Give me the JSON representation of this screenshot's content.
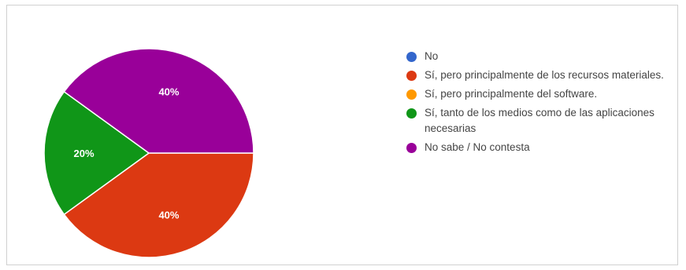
{
  "chart_data": {
    "type": "pie",
    "categories": [
      "No",
      "Sí, pero principalmente de los recursos materiales.",
      "Sí, pero principalmente del software.",
      "Sí, tanto de los medios como de las aplicaciones necesarias",
      "No sabe / No contesta"
    ],
    "values": [
      0,
      40,
      0,
      20,
      40
    ],
    "colors": [
      "#3366cc",
      "#dc3912",
      "#ff9900",
      "#109618",
      "#990099"
    ],
    "slice_labels": [
      "",
      "40%",
      "",
      "20%",
      "40%"
    ],
    "legend_position": "right"
  }
}
